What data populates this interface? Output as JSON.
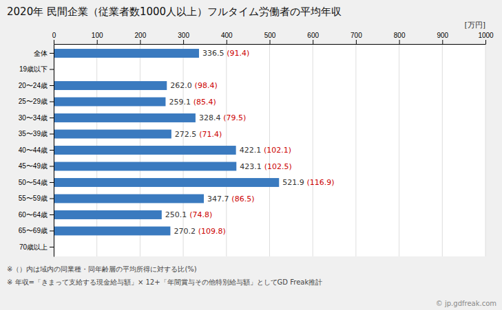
{
  "chart_data": {
    "type": "bar",
    "orientation": "horizontal",
    "title": "2020年 民間企業（従業者数1000人以上）フルタイム労働者の平均年収",
    "xlabel": "[万円]",
    "categories": [
      "全体",
      "19歳以下",
      "20〜24歳",
      "25〜29歳",
      "30〜34歳",
      "35〜39歳",
      "40〜44歳",
      "45〜49歳",
      "50〜54歳",
      "55〜59歳",
      "60〜64歳",
      "65〜69歳",
      "70歳以上"
    ],
    "values": [
      336.5,
      null,
      262.0,
      259.1,
      328.4,
      272.5,
      422.1,
      423.1,
      521.9,
      347.7,
      250.1,
      270.2,
      null
    ],
    "value_labels": [
      "336.5",
      null,
      "262.0",
      "259.1",
      "328.4",
      "272.5",
      "422.1",
      "423.1",
      "521.9",
      "347.7",
      "250.1",
      "270.2",
      null
    ],
    "percentages": [
      91.4,
      null,
      98.4,
      85.4,
      79.5,
      71.4,
      102.1,
      102.5,
      116.9,
      86.5,
      74.8,
      109.8,
      null
    ],
    "percentage_labels": [
      "(91.4)",
      null,
      "(98.4)",
      "(85.4)",
      "(79.5)",
      "(71.4)",
      "(102.1)",
      "(102.5)",
      "(116.9)",
      "(86.5)",
      "(74.8)",
      "(109.8)",
      null
    ],
    "color": "#3a7abf",
    "data_labels": true,
    "xlim": [
      0,
      1000
    ],
    "xticks": [
      0,
      100,
      200,
      300,
      400,
      500,
      600,
      700,
      800,
      900,
      1000
    ],
    "grid": true,
    "annotations": [
      "※（）内は域内の同業種・同年齢層の平均所得に対する比(%)",
      "※ 年収=「きまって支給する現金給与額」× 12+「年間賞与その他特別給与額」としてGD Freak推計",
      "© jp.gdfreak.com"
    ]
  }
}
